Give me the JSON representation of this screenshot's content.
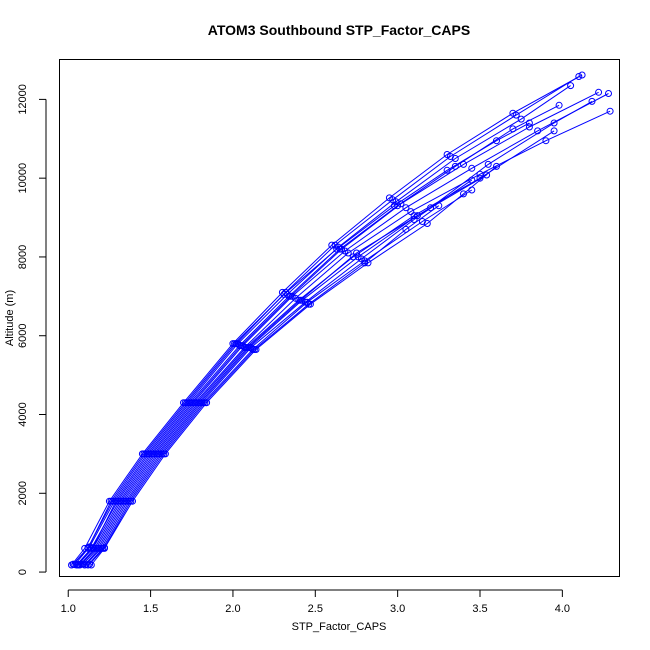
{
  "chart_data": {
    "type": "line",
    "title": "ATOM3 Southbound STP_Factor_CAPS",
    "xlabel": "STP_Factor_CAPS",
    "ylabel": "Altitude (m)",
    "xlim": [
      0.95,
      4.35
    ],
    "ylim": [
      -100,
      13000
    ],
    "x_ticks": [
      1.0,
      1.5,
      2.0,
      2.5,
      3.0,
      3.5,
      4.0
    ],
    "x_tick_labels": [
      "1.0",
      "1.5",
      "2.0",
      "2.5",
      "3.0",
      "3.5",
      "4.0"
    ],
    "y_ticks": [
      0,
      2000,
      4000,
      6000,
      8000,
      10000,
      12000
    ],
    "y_tick_labels": [
      "0",
      "2000",
      "4000",
      "6000",
      "8000",
      "10000",
      "12000"
    ],
    "grid": false,
    "legend": "none",
    "color": "#0000ff",
    "marker": "open-circle",
    "series": [
      {
        "x": [
          1.02,
          1.1,
          1.25,
          1.45,
          1.7,
          2.0,
          2.3,
          2.6,
          2.95,
          3.3,
          3.7,
          4.12
        ],
        "y": [
          180,
          600,
          1800,
          3000,
          4300,
          5800,
          7100,
          8300,
          9500,
          10600,
          11650,
          12620
        ]
      },
      {
        "x": [
          1.03,
          1.12,
          1.27,
          1.47,
          1.72,
          2.02,
          2.32,
          2.62,
          2.97,
          3.32,
          3.72,
          4.1
        ],
        "y": [
          200,
          620,
          1800,
          3000,
          4300,
          5800,
          7100,
          8300,
          9450,
          10550,
          11600,
          12580
        ]
      },
      {
        "x": [
          1.04,
          1.13,
          1.28,
          1.48,
          1.73,
          2.03,
          2.33,
          2.64,
          2.99,
          3.35,
          3.75,
          4.05
        ],
        "y": [
          190,
          640,
          1800,
          3000,
          4300,
          5800,
          7050,
          8250,
          9400,
          10500,
          11500,
          12350
        ]
      },
      {
        "x": [
          1.05,
          1.14,
          1.3,
          1.5,
          1.75,
          2.05,
          2.35,
          2.66,
          3.02,
          3.4,
          3.8,
          4.22
        ],
        "y": [
          180,
          600,
          1800,
          3000,
          4300,
          5750,
          7000,
          8200,
          9350,
          10350,
          11300,
          12180
        ]
      },
      {
        "x": [
          1.06,
          1.15,
          1.31,
          1.51,
          1.76,
          2.06,
          2.36,
          2.68,
          3.05,
          3.45,
          3.85,
          4.28
        ],
        "y": [
          200,
          600,
          1800,
          3000,
          4300,
          5750,
          7000,
          8150,
          9250,
          10250,
          11200,
          12150
        ]
      },
      {
        "x": [
          1.07,
          1.16,
          1.32,
          1.52,
          1.77,
          2.07,
          2.38,
          2.7,
          3.08,
          3.5,
          3.9,
          4.29
        ],
        "y": [
          180,
          600,
          1800,
          3000,
          4300,
          5700,
          6950,
          8100,
          9150,
          10100,
          10950,
          11700
        ]
      },
      {
        "x": [
          1.08,
          1.17,
          1.33,
          1.53,
          1.78,
          2.08,
          2.4,
          2.73,
          3.1,
          3.5,
          3.95
        ],
        "y": [
          200,
          600,
          1800,
          3000,
          4300,
          5700,
          6900,
          8000,
          9050,
          10000,
          11200
        ]
      },
      {
        "x": [
          1.1,
          1.19,
          1.35,
          1.55,
          1.8,
          2.1,
          2.42,
          2.76,
          3.12,
          3.54
        ],
        "y": [
          180,
          600,
          1800,
          3000,
          4300,
          5700,
          6900,
          8000,
          9050,
          10080
        ]
      },
      {
        "x": [
          1.11,
          1.2,
          1.36,
          1.56,
          1.81,
          2.11,
          2.44,
          2.78,
          3.1,
          3.45
        ],
        "y": [
          200,
          600,
          1800,
          3000,
          4300,
          5700,
          6850,
          7950,
          8950,
          9950
        ]
      },
      {
        "x": [
          1.12,
          1.21,
          1.37,
          1.57,
          1.82,
          2.12,
          2.45,
          2.8,
          3.15,
          3.45
        ],
        "y": [
          180,
          600,
          1800,
          3000,
          4300,
          5650,
          6850,
          7900,
          8900,
          9700
        ]
      },
      {
        "x": [
          1.13,
          1.22,
          1.38,
          1.58,
          1.83,
          2.13,
          2.46,
          2.8,
          3.05,
          3.25
        ],
        "y": [
          200,
          620,
          1800,
          3000,
          4300,
          5650,
          6800,
          7850,
          8700,
          9300
        ]
      },
      {
        "x": [
          1.14,
          1.22,
          1.39,
          1.59,
          1.84,
          2.14,
          2.47,
          2.82,
          3.18,
          3.4,
          3.6
        ],
        "y": [
          180,
          600,
          1800,
          3000,
          4300,
          5650,
          6800,
          7850,
          8850,
          9600,
          10300
        ]
      },
      {
        "x": [
          1.09,
          1.18,
          1.34,
          1.54,
          1.79,
          2.09,
          2.41,
          2.75,
          3.2,
          3.55,
          3.95,
          4.18
        ],
        "y": [
          200,
          600,
          1800,
          3000,
          4300,
          5700,
          6900,
          8100,
          9250,
          10350,
          11400,
          11950
        ]
      },
      {
        "x": [
          1.06,
          1.15,
          1.29,
          1.49,
          1.74,
          2.04,
          2.34,
          2.65,
          3.0,
          3.35,
          3.7,
          3.98
        ],
        "y": [
          180,
          620,
          1800,
          3000,
          4300,
          5750,
          7000,
          8200,
          9300,
          10300,
          11250,
          11850
        ]
      },
      {
        "x": [
          1.03,
          1.12,
          1.26,
          1.46,
          1.71,
          2.01,
          2.31,
          2.63,
          2.98,
          3.3,
          3.6,
          3.8
        ],
        "y": [
          200,
          600,
          1800,
          3000,
          4300,
          5800,
          7050,
          8200,
          9300,
          10200,
          10950,
          11400
        ]
      }
    ]
  }
}
